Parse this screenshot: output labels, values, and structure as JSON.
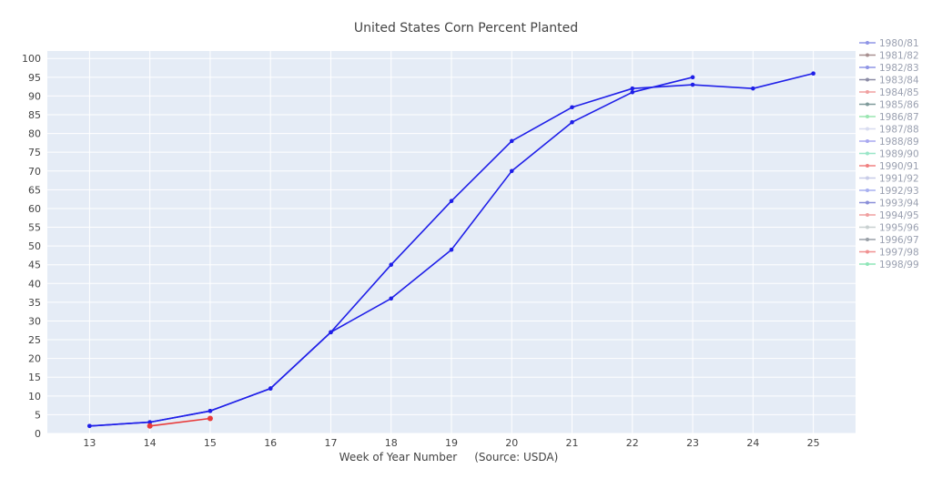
{
  "chart_data": {
    "type": "line",
    "title": "United States Corn Percent Planted",
    "xlabel": "Week of Year Number     (Source: USDA)",
    "ylabel": "",
    "xlim": [
      12.3,
      25.7
    ],
    "ylim": [
      0,
      102
    ],
    "x_ticks": [
      13,
      14,
      15,
      16,
      17,
      18,
      19,
      20,
      21,
      22,
      23,
      24,
      25
    ],
    "y_ticks": [
      0,
      5,
      10,
      15,
      20,
      25,
      30,
      35,
      40,
      45,
      50,
      55,
      60,
      65,
      70,
      75,
      80,
      85,
      90,
      95,
      100
    ],
    "grid": true,
    "legend_position": "right",
    "series": [
      {
        "name": "1980/81",
        "color": "#8f95e6",
        "x": [],
        "y": []
      },
      {
        "name": "1981/82",
        "color": "#a89090",
        "x": [],
        "y": []
      },
      {
        "name": "1982/83",
        "color": "#8f95e6",
        "x": [],
        "y": []
      },
      {
        "name": "1983/84",
        "color": "#8c8ca6",
        "x": [],
        "y": []
      },
      {
        "name": "1984/85",
        "color": "#f0a0a0",
        "x": [],
        "y": []
      },
      {
        "name": "1985/86",
        "color": "#7f9a9a",
        "x": [],
        "y": []
      },
      {
        "name": "1986/87",
        "color": "#9ae6b0",
        "x": [],
        "y": []
      },
      {
        "name": "1987/88",
        "color": "#d8dcf0",
        "x": [],
        "y": []
      },
      {
        "name": "1988/89",
        "color": "#a8a8f0",
        "x": [],
        "y": []
      },
      {
        "name": "1989/90",
        "color": "#9ae6c8",
        "x": [],
        "y": []
      },
      {
        "name": "1990/91",
        "color": "#f08080",
        "x": [],
        "y": []
      },
      {
        "name": "1991/92",
        "color": "#c8cce8",
        "x": [],
        "y": []
      },
      {
        "name": "1992/93",
        "color": "#a8b0f0",
        "x": [],
        "y": []
      },
      {
        "name": "1993/94",
        "color": "#8a8fd8",
        "x": [],
        "y": []
      },
      {
        "name": "1994/95",
        "color": "#f0a0a0",
        "x": [],
        "y": []
      },
      {
        "name": "1995/96",
        "color": "#c8d0d0",
        "x": [],
        "y": []
      },
      {
        "name": "1996/97",
        "color": "#9aa0a8",
        "x": [],
        "y": []
      },
      {
        "name": "1997/98",
        "color": "#f09090",
        "x": [],
        "y": []
      },
      {
        "name": "1998/99",
        "color": "#8fe6b8",
        "x": [],
        "y": []
      }
    ],
    "plotted_series": [
      {
        "color": "#1f1fe8",
        "x": [
          13,
          14,
          15,
          16,
          17,
          18,
          19,
          20,
          21,
          22,
          23,
          24,
          25
        ],
        "y": [
          2,
          3,
          6,
          12,
          27,
          45,
          62,
          78,
          87,
          92,
          93,
          92,
          96
        ]
      },
      {
        "color": "#1f1fe8",
        "x": [
          13,
          14,
          15,
          16,
          17,
          18,
          19,
          20,
          21,
          22,
          23
        ],
        "y": [
          2,
          3,
          6,
          12,
          27,
          36,
          49,
          70,
          83,
          91,
          95
        ]
      },
      {
        "color": "#e83a3a",
        "x": [
          14,
          15
        ],
        "y": [
          2,
          4
        ]
      }
    ]
  }
}
